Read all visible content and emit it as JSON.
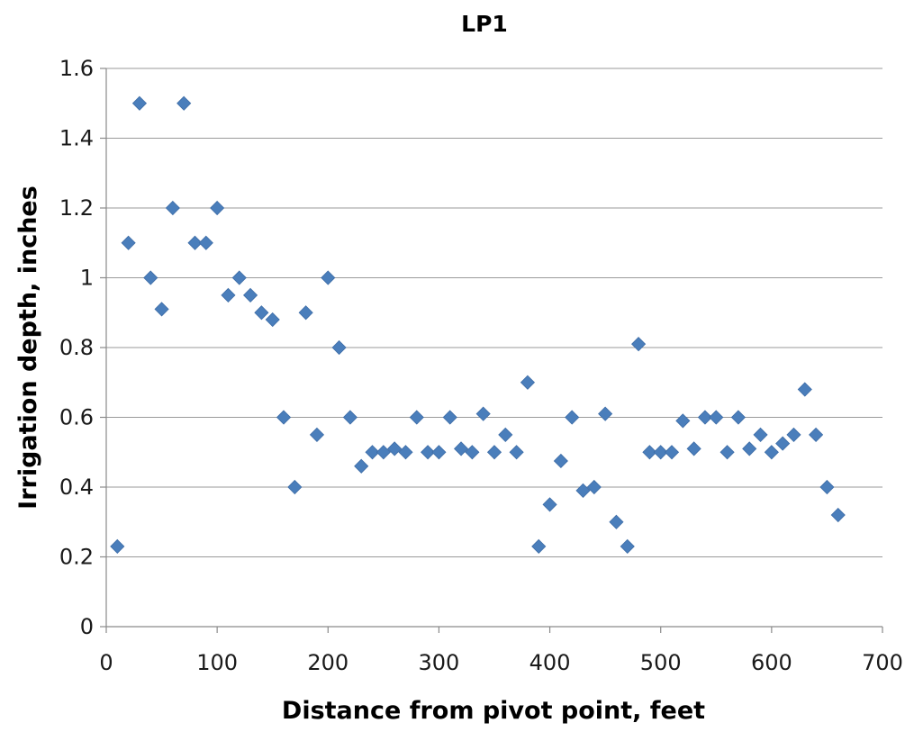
{
  "chart_data": {
    "type": "scatter",
    "title": "LP1",
    "xlabel": "Distance from pivot point, feet",
    "ylabel": "Irrigation depth, inches",
    "xlim": [
      0,
      700
    ],
    "ylim": [
      0,
      1.6
    ],
    "xticks": [
      "0",
      "100",
      "200",
      "300",
      "400",
      "500",
      "600",
      "700"
    ],
    "yticks": [
      "0",
      "0.2",
      "0.4",
      "0.6",
      "0.8",
      "1",
      "1.2",
      "1.4",
      "1.6"
    ],
    "grid": "horizontal",
    "legend": "none",
    "marker": "diamond",
    "marker_color": "#4a7ebb",
    "series": [
      {
        "x": [
          10,
          20,
          30,
          40,
          50,
          60,
          70,
          80,
          90,
          100,
          110,
          120,
          130,
          140,
          150,
          160,
          170,
          180,
          190,
          200,
          210,
          220,
          230,
          240,
          250,
          260,
          270,
          280,
          290,
          300,
          310,
          320,
          330,
          340,
          350,
          360,
          370,
          380,
          390,
          400,
          410,
          420,
          430,
          440,
          450,
          460,
          470,
          480,
          490,
          500,
          510,
          520,
          530,
          540,
          550,
          560,
          570,
          580,
          590,
          600,
          610,
          620,
          630,
          640,
          650,
          660
        ],
        "y": [
          0.23,
          1.1,
          1.5,
          1.0,
          0.91,
          1.2,
          1.5,
          1.1,
          1.1,
          1.2,
          0.95,
          1.0,
          0.95,
          0.9,
          0.88,
          0.6,
          0.4,
          0.9,
          0.55,
          1.0,
          0.8,
          0.6,
          0.46,
          0.5,
          0.5,
          0.51,
          0.5,
          0.6,
          0.5,
          0.5,
          0.6,
          0.51,
          0.5,
          0.61,
          0.5,
          0.55,
          0.5,
          0.7,
          0.23,
          0.35,
          0.475,
          0.6,
          0.39,
          0.4,
          0.61,
          0.3,
          0.23,
          0.81,
          0.5,
          0.5,
          0.5,
          0.59,
          0.51,
          0.6,
          0.6,
          0.5,
          0.6,
          0.51,
          0.55,
          0.5,
          0.525,
          0.55,
          0.68,
          0.55,
          0.4,
          0.32
        ]
      }
    ]
  }
}
